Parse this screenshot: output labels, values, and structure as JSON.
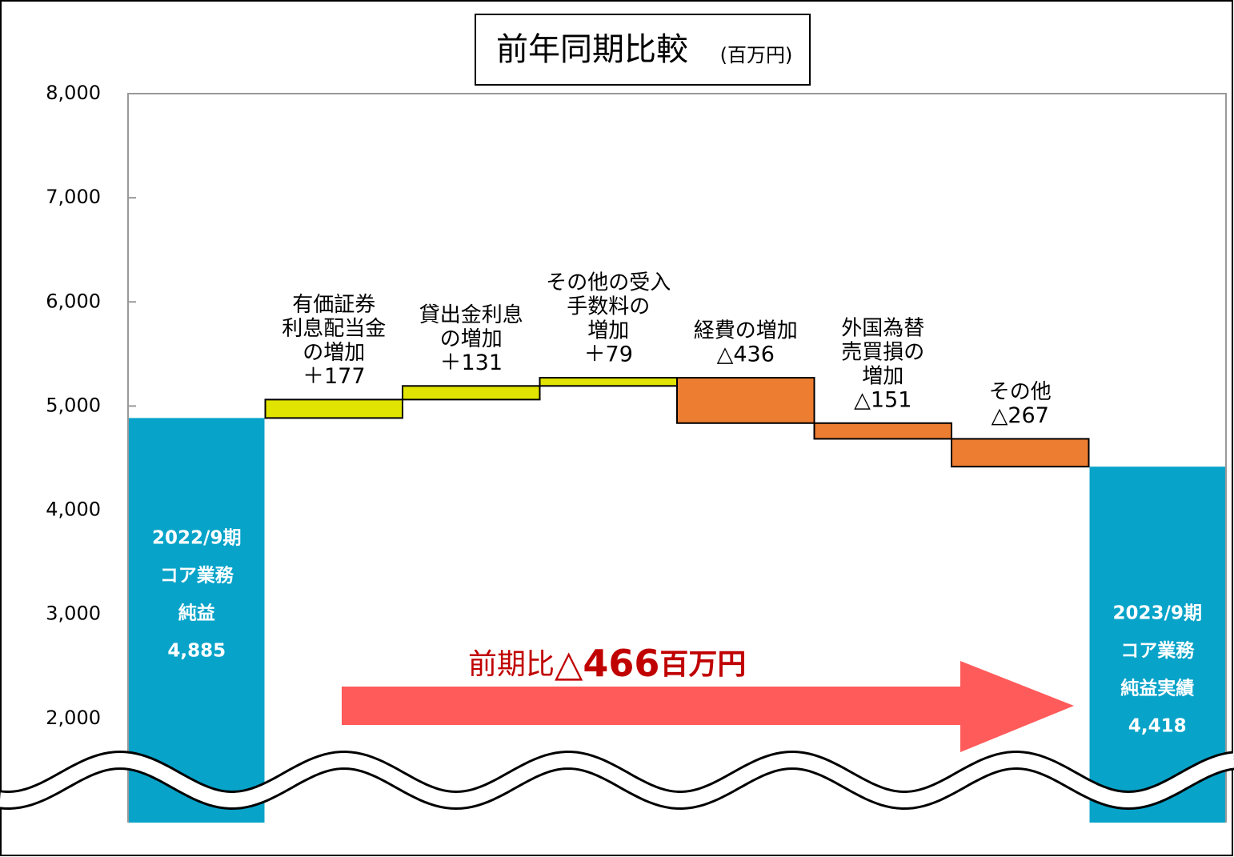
{
  "chart_data": {
    "type": "waterfall",
    "title": "前年同期比較",
    "unit": "(百万円)",
    "categories": [
      [
        "2022/9期",
        "コア業務",
        "純益"
      ],
      [
        "有価証券",
        "利息配当金",
        "の増加"
      ],
      [
        "貸出金利息",
        "の増加"
      ],
      [
        "その他の受入",
        "手数料の",
        "増加"
      ],
      [
        "経費の増加"
      ],
      [
        "外国為替",
        "売買損の",
        "増加"
      ],
      [
        "その他"
      ],
      [
        "2023/9期",
        "コア業務",
        "純益実績"
      ]
    ],
    "values": [
      4885,
      177,
      131,
      79,
      -436,
      -151,
      -267,
      4418
    ],
    "value_labels": [
      "4,885",
      "＋177",
      "＋131",
      "＋79",
      "△436",
      "△151",
      "△267",
      "4,418"
    ],
    "kinds": [
      "total",
      "delta",
      "delta",
      "delta",
      "delta",
      "delta",
      "delta",
      "total"
    ],
    "colors": {
      "total": "#08a3c9",
      "increase": "#e1e300",
      "decrease": "#ed7d31"
    },
    "ylim": [
      1000,
      8000
    ],
    "yticks": [
      {
        "value": 2000,
        "label": "2,000"
      },
      {
        "value": 3000,
        "label": "3,000"
      },
      {
        "value": 4000,
        "label": "4,000"
      },
      {
        "value": 5000,
        "label": "5,000"
      },
      {
        "value": 6000,
        "label": "6,000"
      },
      {
        "value": 7000,
        "label": "7,000"
      },
      {
        "value": 8000,
        "label": "8,000"
      }
    ],
    "annotation": {
      "prefix": "前期比",
      "value_label": "△466",
      "unit": "百万円",
      "color": "#c00000",
      "arrow_color": "#ff5b5b"
    }
  }
}
